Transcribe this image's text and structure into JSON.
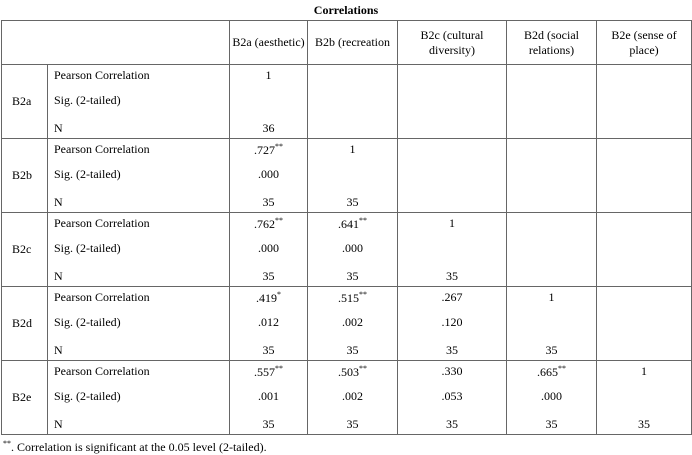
{
  "title": "Correlations",
  "columns": [
    "B2a (aesthetic)",
    "B2b (recreation",
    "B2c (cultural diversity)",
    "B2d (social relations)",
    "B2e (sense of place)"
  ],
  "stat_labels": [
    "Pearson Correlation",
    "Sig. (2-tailed)",
    "N"
  ],
  "rows": [
    {
      "label": "B2a",
      "stats": [
        [
          {
            "text": "1"
          },
          null,
          null,
          null,
          null
        ],
        [
          null,
          null,
          null,
          null,
          null
        ],
        [
          {
            "text": "36"
          },
          null,
          null,
          null,
          null
        ]
      ]
    },
    {
      "label": "B2b",
      "stats": [
        [
          {
            "text": ".727",
            "sup": "**"
          },
          {
            "text": "1"
          },
          null,
          null,
          null
        ],
        [
          {
            "text": ".000"
          },
          null,
          null,
          null,
          null
        ],
        [
          {
            "text": "35"
          },
          {
            "text": "35"
          },
          null,
          null,
          null
        ]
      ]
    },
    {
      "label": "B2c",
      "stats": [
        [
          {
            "text": ".762",
            "sup": "**"
          },
          {
            "text": ".641",
            "sup": "**"
          },
          {
            "text": "1"
          },
          null,
          null
        ],
        [
          {
            "text": ".000"
          },
          {
            "text": ".000"
          },
          null,
          null,
          null
        ],
        [
          {
            "text": "35"
          },
          {
            "text": "35"
          },
          {
            "text": "35"
          },
          null,
          null
        ]
      ]
    },
    {
      "label": "B2d",
      "stats": [
        [
          {
            "text": ".419",
            "sup": "*"
          },
          {
            "text": ".515",
            "sup": "**"
          },
          {
            "text": ".267"
          },
          {
            "text": "1"
          },
          null
        ],
        [
          {
            "text": ".012"
          },
          {
            "text": ".002"
          },
          {
            "text": ".120"
          },
          null,
          null
        ],
        [
          {
            "text": "35"
          },
          {
            "text": "35"
          },
          {
            "text": "35"
          },
          {
            "text": "35"
          },
          null
        ]
      ]
    },
    {
      "label": "B2e",
      "stats": [
        [
          {
            "text": ".557",
            "sup": "**"
          },
          {
            "text": ".503",
            "sup": "**"
          },
          {
            "text": ".330"
          },
          {
            "text": ".665",
            "sup": "**"
          },
          {
            "text": "1"
          }
        ],
        [
          {
            "text": ".001"
          },
          {
            "text": ".002"
          },
          {
            "text": ".053"
          },
          {
            "text": ".000"
          },
          null
        ],
        [
          {
            "text": "35"
          },
          {
            "text": "35"
          },
          {
            "text": "35"
          },
          {
            "text": "35"
          },
          {
            "text": "35"
          }
        ]
      ]
    }
  ],
  "footnote": {
    "marker": "**",
    "text": ". Correlation is significant at the 0.05 level (2-tailed)."
  }
}
